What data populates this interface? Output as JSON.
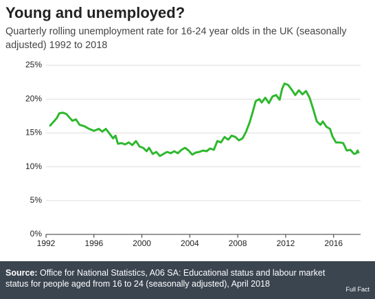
{
  "chart_data": {
    "type": "line",
    "title": "Young and unemployed?",
    "subtitle": "Quarterly rolling unemployment rate for 16-24 year olds in the UK (seasonally adjusted) 1992 to 2018",
    "source_label": "Source:",
    "source_text": "Office for National Statistics, A06 SA: Educational status and labour market status for people aged from 16 to 24 (seasonally adjusted), April 2018",
    "logo": "Full Fact",
    "xlim": [
      1992,
      2018.25
    ],
    "xticks": [
      1992,
      1996,
      2000,
      2004,
      2008,
      2012,
      2016
    ],
    "ylim": [
      0,
      25
    ],
    "yticks": [
      {
        "value": 0,
        "label": "0%"
      },
      {
        "value": 5,
        "label": "5%"
      },
      {
        "value": 10,
        "label": "10%"
      },
      {
        "value": 15,
        "label": "15%"
      },
      {
        "value": 20,
        "label": "20%"
      },
      {
        "value": 25,
        "label": "25%"
      }
    ],
    "grid": true,
    "series": [
      {
        "name": "Unemployment rate 16-24",
        "color": "#2eb82e",
        "x": [
          1992.3,
          1992.6,
          1992.9,
          1993.1,
          1993.4,
          1993.7,
          1994.0,
          1994.2,
          1994.5,
          1994.8,
          1995.2,
          1995.6,
          1996.0,
          1996.4,
          1996.7,
          1997.0,
          1997.3,
          1997.6,
          1997.8,
          1998.0,
          1998.3,
          1998.6,
          1998.9,
          1999.2,
          1999.5,
          1999.8,
          2000.1,
          2000.4,
          2000.6,
          2000.9,
          2001.2,
          2001.5,
          2001.8,
          2002.1,
          2002.4,
          2002.7,
          2003.0,
          2003.3,
          2003.6,
          2003.9,
          2004.2,
          2004.5,
          2004.8,
          2005.1,
          2005.4,
          2005.7,
          2006.0,
          2006.3,
          2006.6,
          2006.9,
          2007.2,
          2007.5,
          2007.8,
          2008.1,
          2008.4,
          2008.7,
          2009.0,
          2009.2,
          2009.5,
          2009.8,
          2010.0,
          2010.3,
          2010.6,
          2010.9,
          2011.2,
          2011.5,
          2011.7,
          2011.9,
          2012.2,
          2012.5,
          2012.8,
          2013.1,
          2013.4,
          2013.7,
          2014.0,
          2014.3,
          2014.6,
          2014.9,
          2015.1,
          2015.4,
          2015.7,
          2015.9,
          2016.2,
          2016.5,
          2016.8,
          2017.1,
          2017.4,
          2017.7,
          2017.9,
          2018.0,
          2018.1
        ],
        "values": [
          16.0,
          16.6,
          17.2,
          17.9,
          18.0,
          17.8,
          17.2,
          16.8,
          17.0,
          16.2,
          16.0,
          15.6,
          15.3,
          15.6,
          15.2,
          15.6,
          14.9,
          14.2,
          14.6,
          13.4,
          13.5,
          13.3,
          13.6,
          13.2,
          13.8,
          13.0,
          12.8,
          12.3,
          12.8,
          11.9,
          12.2,
          11.6,
          11.9,
          12.2,
          12.0,
          12.3,
          12.0,
          12.5,
          12.8,
          12.4,
          11.8,
          12.1,
          12.2,
          12.4,
          12.3,
          12.7,
          12.5,
          13.8,
          13.6,
          14.4,
          14.0,
          14.6,
          14.4,
          13.9,
          14.2,
          15.2,
          16.6,
          17.8,
          19.7,
          20.0,
          19.5,
          20.2,
          19.4,
          20.4,
          20.6,
          19.9,
          21.5,
          22.3,
          22.1,
          21.4,
          20.6,
          21.3,
          20.7,
          21.2,
          20.2,
          18.5,
          16.7,
          16.2,
          16.7,
          15.9,
          15.6,
          14.5,
          13.6,
          13.6,
          13.5,
          12.4,
          12.5,
          11.9,
          12.0,
          12.4,
          12.0
        ]
      }
    ]
  }
}
